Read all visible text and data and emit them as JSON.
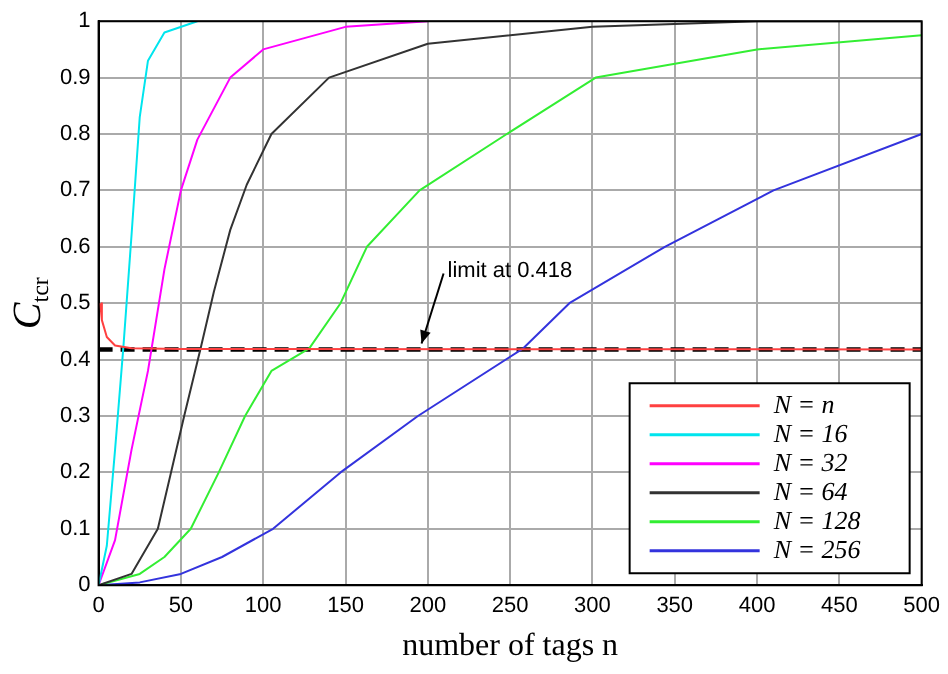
{
  "chart_data": {
    "type": "line",
    "xlabel": "number of tags n",
    "ylabel": "C$_{tcr}$",
    "xlim": [
      0,
      500
    ],
    "xticks": [
      0,
      50,
      100,
      150,
      200,
      250,
      300,
      350,
      400,
      450,
      500
    ],
    "ylim": [
      0,
      1
    ],
    "yticks": [
      0,
      0.1,
      0.2,
      0.3,
      0.4,
      0.5,
      0.6,
      0.7,
      0.8,
      0.9,
      1
    ],
    "grid": true,
    "legend": "bottom right",
    "marker": "none",
    "line_style": "solid",
    "series": [
      {
        "name": "N = n",
        "color": "#ff4040",
        "x": [
          1,
          2,
          5,
          10,
          20,
          50,
          500
        ],
        "values": [
          0.5,
          0.47,
          0.44,
          0.425,
          0.42,
          0.419,
          0.418
        ]
      },
      {
        "name": "N = 16",
        "color": "#00e5ee",
        "x": [
          0,
          5,
          10,
          15,
          20,
          25,
          30,
          40,
          60
        ],
        "values": [
          0,
          0.07,
          0.24,
          0.42,
          0.62,
          0.83,
          0.93,
          0.98,
          1
        ]
      },
      {
        "name": "N = 32",
        "color": "#ff00ff",
        "x": [
          0,
          10,
          20,
          30,
          40,
          50,
          60,
          80,
          100,
          150,
          200
        ],
        "values": [
          0,
          0.08,
          0.24,
          0.38,
          0.56,
          0.7,
          0.79,
          0.9,
          0.95,
          0.99,
          1
        ]
      },
      {
        "name": "N = 64",
        "color": "#333333",
        "x": [
          0,
          20,
          36,
          44,
          52,
          62,
          70,
          80,
          90,
          105,
          140,
          200,
          300,
          400,
          500
        ],
        "values": [
          0,
          0.02,
          0.1,
          0.2,
          0.3,
          0.42,
          0.52,
          0.63,
          0.71,
          0.8,
          0.9,
          0.96,
          0.99,
          1,
          1
        ]
      },
      {
        "name": "N = 128",
        "color": "#33ee33",
        "x": [
          0,
          25,
          40,
          56,
          73,
          89,
          105,
          128,
          147,
          163,
          195,
          248,
          302,
          400,
          500
        ],
        "values": [
          0,
          0.02,
          0.05,
          0.1,
          0.2,
          0.3,
          0.38,
          0.42,
          0.5,
          0.6,
          0.7,
          0.8,
          0.9,
          0.95,
          0.975
        ]
      },
      {
        "name": "N = 256",
        "color": "#3333dd",
        "x": [
          0,
          25,
          50,
          75,
          106,
          147,
          194,
          258,
          286,
          344,
          410,
          500
        ],
        "values": [
          0,
          0.005,
          0.02,
          0.05,
          0.1,
          0.2,
          0.3,
          0.42,
          0.5,
          0.6,
          0.7,
          0.8
        ]
      }
    ],
    "ref_lines": [
      {
        "axis": "y",
        "value": 0.418,
        "color": "#000000",
        "line_style": "dashed"
      }
    ],
    "annotations": [
      {
        "text": "limit at 0.418",
        "x": 195,
        "y": 0.418
      }
    ]
  }
}
